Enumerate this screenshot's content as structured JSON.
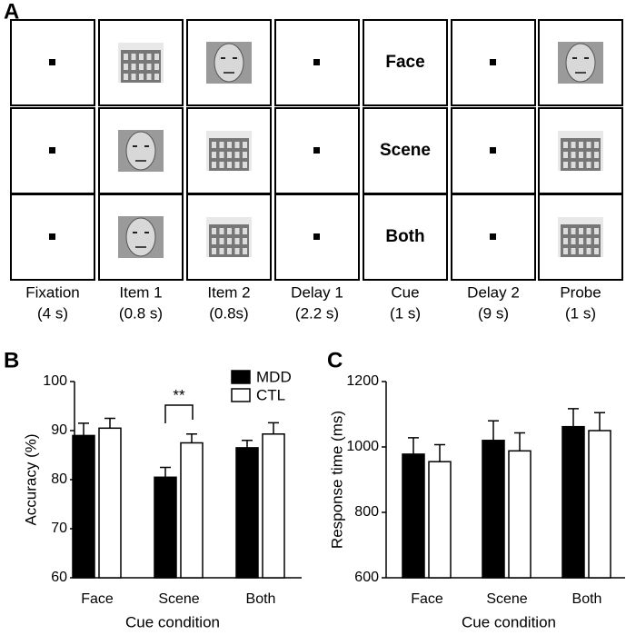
{
  "panel_a": {
    "label": "A",
    "cues": [
      "Face",
      "Scene",
      "Both"
    ],
    "stages": [
      {
        "name": "Fixation",
        "duration": "(4 s)"
      },
      {
        "name": "Item 1",
        "duration": "(0.8 s)"
      },
      {
        "name": "Item 2",
        "duration": "(0.8s)"
      },
      {
        "name": "Delay 1",
        "duration": "(2.2 s)"
      },
      {
        "name": "Cue",
        "duration": "(1 s)"
      },
      {
        "name": "Delay 2",
        "duration": "(9 s)"
      },
      {
        "name": "Probe",
        "duration": "(1 s)"
      }
    ]
  },
  "chart_data": [
    {
      "type": "bar",
      "panel_label": "B",
      "xlabel": "Cue condition",
      "ylabel": "Accuracy (%)",
      "categories": [
        "Face",
        "Scene",
        "Both"
      ],
      "series": [
        {
          "name": "MDD",
          "color": "#000000",
          "values": [
            89,
            80.5,
            86.5
          ],
          "errors": [
            2.5,
            2,
            1.5
          ]
        },
        {
          "name": "CTL",
          "color": "#ffffff",
          "values": [
            90.5,
            87.5,
            89.3
          ],
          "errors": [
            2,
            1.8,
            2.3
          ]
        }
      ],
      "ylim": [
        60,
        100
      ],
      "yticks": [
        60,
        70,
        80,
        90,
        100
      ],
      "annotations": [
        {
          "text": "**"
        }
      ],
      "legend": "top-right"
    },
    {
      "type": "bar",
      "panel_label": "C",
      "xlabel": "Cue condition",
      "ylabel": "Response time (ms)",
      "categories": [
        "Face",
        "Scene",
        "Both"
      ],
      "series": [
        {
          "name": "MDD",
          "color": "#000000",
          "values": [
            978,
            1020,
            1062
          ],
          "errors": [
            50,
            60,
            55
          ]
        },
        {
          "name": "CTL",
          "color": "#ffffff",
          "values": [
            955,
            988,
            1050
          ],
          "errors": [
            52,
            55,
            55
          ]
        }
      ],
      "ylim": [
        600,
        1200
      ],
      "yticks": [
        600,
        800,
        1000,
        1200
      ]
    }
  ]
}
